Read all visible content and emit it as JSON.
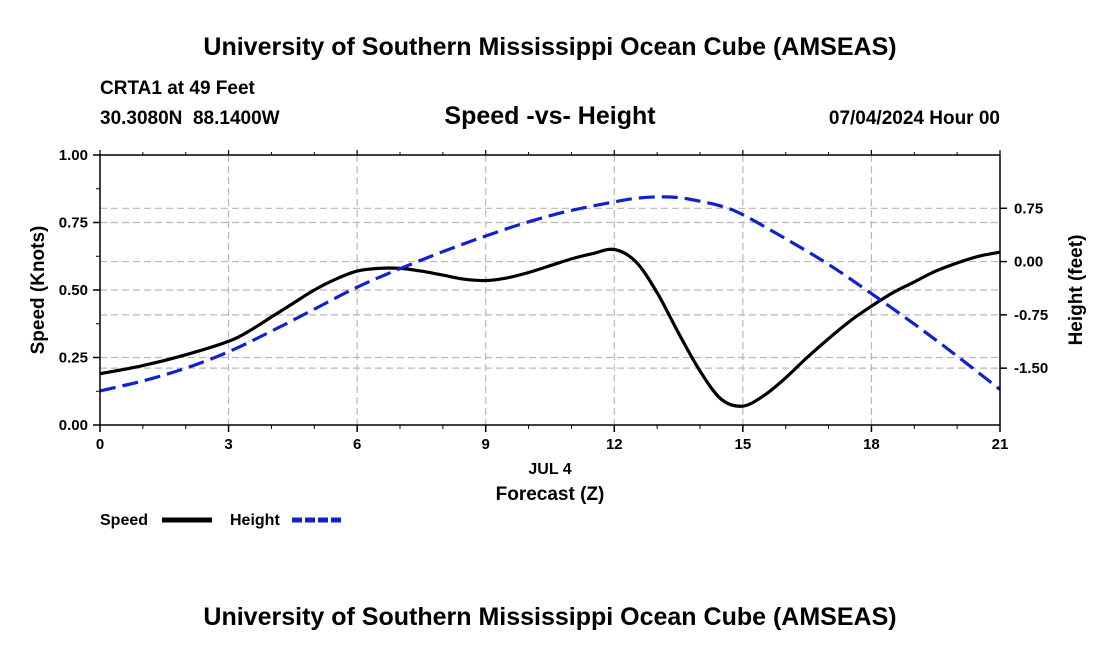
{
  "chart_data": {
    "type": "line",
    "title": "University of Southern Mississippi Ocean Cube (AMSEAS)",
    "station": "CRTA1 at 49 Feet",
    "coordinates": "30.3080N  88.1400W",
    "subtitle": "Speed -vs- Height",
    "datetime": "07/04/2024 Hour 00",
    "xlabel": "Forecast (Z)",
    "xdate_label": "JUL 4",
    "ylabel_left": "Speed (Knots)",
    "ylabel_right": "Height (feet)",
    "footer_title": "University of Southern Mississippi Ocean Cube (AMSEAS)",
    "x_ticks": [
      0,
      3,
      6,
      9,
      12,
      15,
      18,
      21
    ],
    "x_tick_labels": [
      "0",
      "3",
      "6",
      "9",
      "12",
      "15",
      "18",
      "21"
    ],
    "xlim": [
      0,
      21
    ],
    "ylim_left": [
      0,
      1
    ],
    "y_left_ticks": [
      0,
      0.25,
      0.5,
      0.75,
      1.0
    ],
    "y_left_tick_labels": [
      "0.00",
      "0.25",
      "0.50",
      "0.75",
      "1.00"
    ],
    "ylim_right": [
      -2.3,
      1.5
    ],
    "y_right_ticks": [
      0.75,
      0.0,
      -0.75,
      -1.5
    ],
    "y_right_tick_labels": [
      "0.75",
      "0.00",
      "-0.75",
      "-1.50"
    ],
    "grid": true,
    "legend_position": "bottom-left",
    "series": [
      {
        "name": "Speed",
        "axis": "left",
        "color": "#000000",
        "style": "solid",
        "x": [
          0,
          1,
          2,
          3,
          3.5,
          4,
          4.5,
          5,
          5.5,
          6,
          6.5,
          7,
          7.5,
          8,
          8.5,
          9,
          9.5,
          10,
          10.5,
          11,
          11.5,
          12,
          12.5,
          13,
          13.5,
          14,
          14.5,
          15,
          15.5,
          16,
          16.5,
          17,
          17.5,
          18,
          18.5,
          19,
          19.5,
          20,
          20.5,
          21
        ],
        "values": [
          0.19,
          0.22,
          0.26,
          0.31,
          0.35,
          0.4,
          0.45,
          0.5,
          0.54,
          0.57,
          0.58,
          0.58,
          0.57,
          0.555,
          0.54,
          0.535,
          0.545,
          0.565,
          0.59,
          0.615,
          0.635,
          0.65,
          0.605,
          0.49,
          0.34,
          0.2,
          0.095,
          0.07,
          0.11,
          0.175,
          0.25,
          0.32,
          0.385,
          0.44,
          0.49,
          0.53,
          0.57,
          0.6,
          0.625,
          0.64
        ]
      },
      {
        "name": "Height",
        "axis": "right",
        "color": "#1122cc",
        "style": "dashed",
        "x": [
          0,
          1,
          2,
          3,
          4,
          5,
          6,
          7,
          8,
          9,
          10,
          11,
          12,
          12.5,
          13,
          13.5,
          14,
          14.5,
          15,
          16,
          17,
          18,
          19,
          20,
          21
        ],
        "values": [
          -1.82,
          -1.68,
          -1.5,
          -1.27,
          -0.98,
          -0.67,
          -0.36,
          -0.1,
          0.14,
          0.36,
          0.56,
          0.72,
          0.84,
          0.89,
          0.91,
          0.9,
          0.85,
          0.78,
          0.66,
          0.32,
          -0.04,
          -0.45,
          -0.88,
          -1.33,
          -1.8
        ]
      }
    ]
  }
}
